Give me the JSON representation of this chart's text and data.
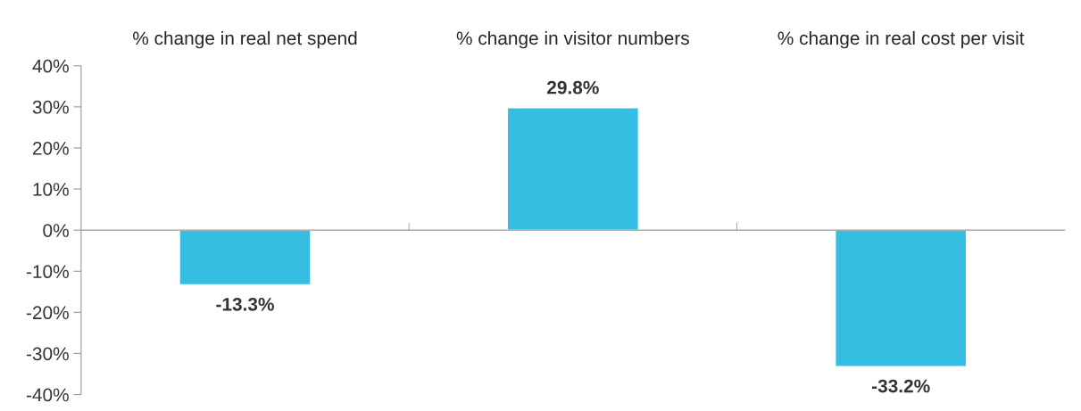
{
  "chart_data": {
    "type": "bar",
    "categories": [
      "% change in real net spend",
      "% change in visitor numbers",
      "% change in real cost per visit"
    ],
    "values": [
      -13.3,
      29.8,
      -33.2
    ],
    "color": "#35bde2",
    "value_labels": [
      "-13.3%",
      "29.8%",
      "-33.2%"
    ],
    "ylim": [
      -40,
      40
    ],
    "yticks": [
      {
        "value": -40,
        "label": "-40%"
      },
      {
        "value": -30,
        "label": "-30%"
      },
      {
        "value": -20,
        "label": "-20%"
      },
      {
        "value": -10,
        "label": "-10%"
      },
      {
        "value": 0,
        "label": "0%"
      },
      {
        "value": 10,
        "label": "10%"
      },
      {
        "value": 20,
        "label": "20%"
      },
      {
        "value": 30,
        "label": "30%"
      },
      {
        "value": 40,
        "label": "40%"
      }
    ],
    "legend": false
  }
}
